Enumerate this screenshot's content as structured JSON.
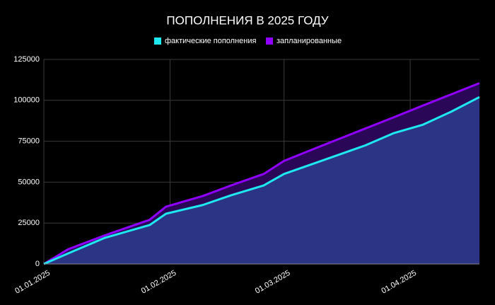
{
  "chart_data": {
    "type": "area",
    "title": "ПОПОЛНЕНИЯ В 2025 ГОДУ",
    "x": [
      "2025-01-01",
      "2025-01-07",
      "2025-01-16",
      "2025-01-27",
      "2025-01-31",
      "2025-02-09",
      "2025-02-16",
      "2025-02-24",
      "2025-03-01",
      "2025-03-09",
      "2025-03-21",
      "2025-03-28",
      "2025-04-04",
      "2025-04-11",
      "2025-04-18"
    ],
    "series": [
      {
        "name": "фактические пополнения",
        "color": "#1ee8f0",
        "fill": "#2c3585",
        "values": [
          0,
          6500,
          16000,
          23800,
          30700,
          36000,
          42000,
          48000,
          55000,
          62000,
          72500,
          80000,
          85000,
          93000,
          102000
        ]
      },
      {
        "name": "запланированные",
        "color": "#8f00ff",
        "fill": "#2a0857",
        "values": [
          0,
          9000,
          17500,
          27000,
          35000,
          41500,
          48000,
          55000,
          63000,
          71000,
          82800,
          89700,
          96700,
          103600,
          110500
        ]
      }
    ],
    "xlim": [
      "2025-01-01",
      "2025-04-18"
    ],
    "xticks": [
      {
        "value": "2025-01-01",
        "label": "01.01.2025"
      },
      {
        "value": "2025-02-01",
        "label": "01.02.2025"
      },
      {
        "value": "2025-03-01",
        "label": "01.03.2025"
      },
      {
        "value": "2025-04-01",
        "label": "01.04.2025"
      }
    ],
    "ylim": [
      0,
      125000
    ],
    "yticks": [
      0,
      25000,
      50000,
      75000,
      100000,
      125000
    ],
    "grid": true
  }
}
